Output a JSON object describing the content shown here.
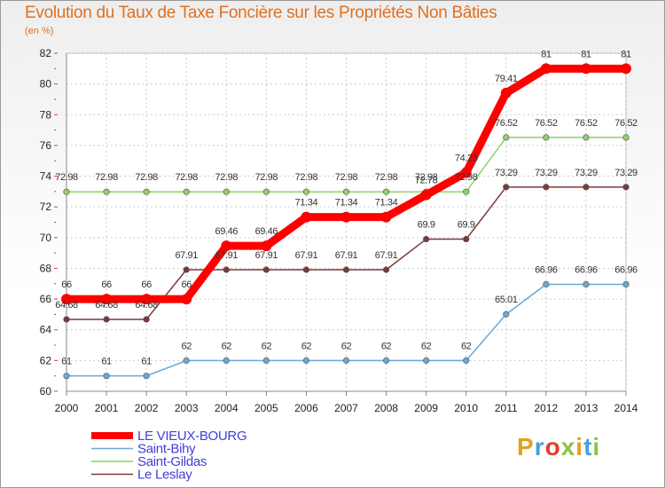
{
  "header": {
    "title": "Evolution du Taux de Taxe Foncière sur les Propriétés Non Bâties",
    "unit": "(en %)"
  },
  "logo": {
    "text": "Proxiti",
    "colors": [
      "#e2a11c",
      "#4aa0d8",
      "#e43c2c",
      "#8bc34a",
      "#e2a11c",
      "#4aa0d8",
      "#8bc34a"
    ]
  },
  "chart_data": {
    "type": "line",
    "title": "Evolution du Taux de Taxe Foncière sur les Propriétés Non Bâties",
    "ylabel": "(en %)",
    "xlabel": "",
    "ylim": [
      60,
      82
    ],
    "yticks": [
      60,
      62,
      64,
      66,
      68,
      70,
      72,
      74,
      76,
      78,
      80,
      82
    ],
    "x": [
      "2000",
      "2001",
      "2002",
      "2003",
      "2004",
      "2005",
      "2006",
      "2007",
      "2008",
      "2009",
      "2010",
      "2011",
      "2012",
      "2013",
      "2014"
    ],
    "grid": true,
    "legend": "bottom-left",
    "series": [
      {
        "name": "LE VIEUX-BOURG",
        "color": "#ff0000",
        "bold": true,
        "values": [
          66,
          66,
          66,
          66,
          69.46,
          69.46,
          71.34,
          71.34,
          71.34,
          72.78,
          74.23,
          79.41,
          81,
          81,
          81
        ],
        "labels": [
          "66",
          "66",
          "66",
          "66",
          "69.46",
          "69.46",
          "71.34",
          "71.34",
          "71.34",
          "72.78",
          "74.23",
          "79.41",
          "81",
          "81",
          "81"
        ]
      },
      {
        "name": "Saint-Bihy",
        "color": "#6aa8d4",
        "bold": false,
        "values": [
          61,
          61,
          61,
          62,
          62,
          62,
          62,
          62,
          62,
          62,
          62,
          65.01,
          66.96,
          66.96,
          66.96
        ],
        "labels": [
          "61",
          "61",
          "61",
          "62",
          "62",
          "62",
          "62",
          "62",
          "62",
          "62",
          "62",
          "65.01",
          "66.96",
          "66.96",
          "66.96"
        ]
      },
      {
        "name": "Saint-Gildas",
        "color": "#8ed16a",
        "bold": false,
        "values": [
          72.98,
          72.98,
          72.98,
          72.98,
          72.98,
          72.98,
          72.98,
          72.98,
          72.98,
          72.98,
          72.98,
          76.52,
          76.52,
          76.52,
          76.52
        ],
        "labels": [
          "72.98",
          "72.98",
          "72.98",
          "72.98",
          "72.98",
          "72.98",
          "72.98",
          "72.98",
          "72.98",
          "72.98",
          "72.98",
          "76.52",
          "76.52",
          "76.52",
          "76.52"
        ]
      },
      {
        "name": "Le Leslay",
        "color": "#7a3a3a",
        "bold": false,
        "values": [
          64.68,
          64.68,
          64.68,
          67.91,
          67.91,
          67.91,
          67.91,
          67.91,
          67.91,
          69.9,
          69.9,
          73.29,
          73.29,
          73.29,
          73.29
        ],
        "labels": [
          "64.68",
          "64.68",
          "64.68",
          "67.91",
          "67.91",
          "67.91",
          "67.91",
          "67.91",
          "67.91",
          "69.9",
          "69.9",
          "73.29",
          "73.29",
          "73.29",
          "73.29"
        ]
      }
    ]
  }
}
